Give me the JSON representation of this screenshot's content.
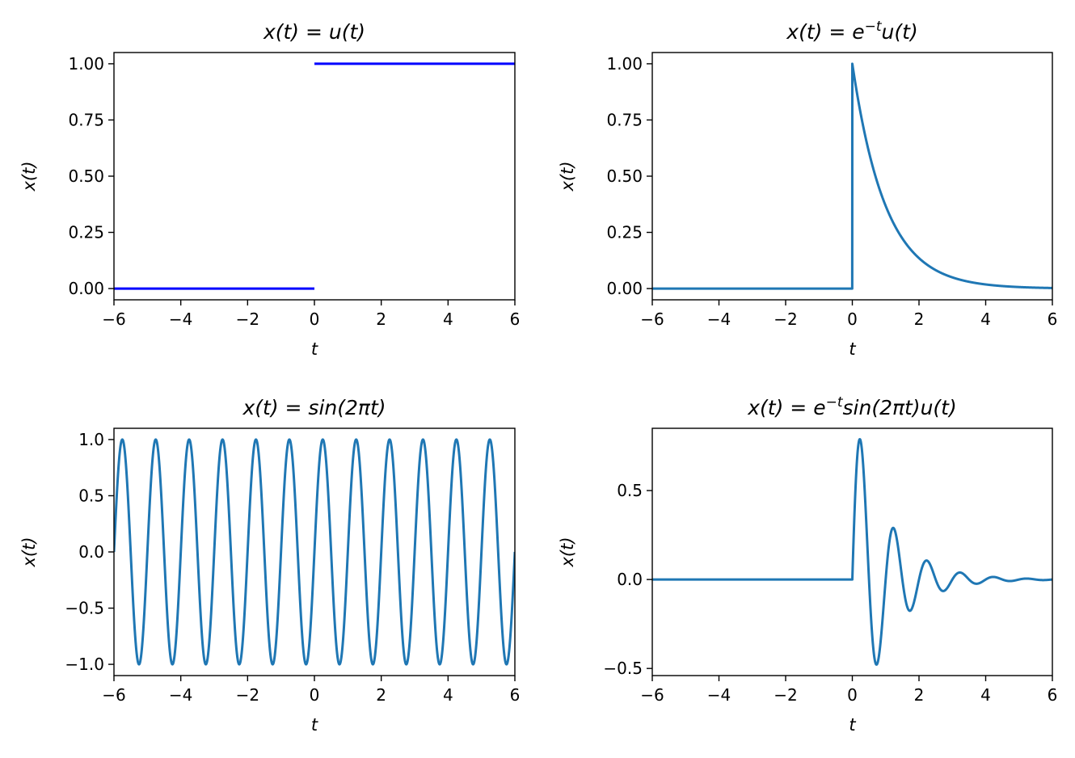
{
  "chart_data": [
    {
      "type": "line",
      "title": "x(t) = u(t)",
      "xlabel": "t",
      "ylabel": "x(t)",
      "xlim": [
        -6,
        6
      ],
      "ylim": [
        -0.05,
        1.05
      ],
      "xticks": [
        "−6",
        "−4",
        "−2",
        "0",
        "2",
        "4",
        "6"
      ],
      "xtick_values": [
        -6,
        -4,
        -2,
        0,
        2,
        4,
        6
      ],
      "yticks": [
        "0.00",
        "0.25",
        "0.50",
        "0.75",
        "1.00"
      ],
      "ytick_values": [
        0,
        0.25,
        0.5,
        0.75,
        1.0
      ],
      "color": "#0000ff",
      "signal": "unit-step",
      "segments": [
        {
          "x": [
            -6,
            0
          ],
          "y": [
            0,
            0
          ]
        },
        {
          "x": [
            0,
            6
          ],
          "y": [
            1,
            1
          ]
        }
      ]
    },
    {
      "type": "line",
      "title": "x(t) = e^{−t}u(t)",
      "xlabel": "t",
      "ylabel": "x(t)",
      "xlim": [
        -6,
        6
      ],
      "ylim": [
        -0.05,
        1.05
      ],
      "xticks": [
        "−6",
        "−4",
        "−2",
        "0",
        "2",
        "4",
        "6"
      ],
      "xtick_values": [
        -6,
        -4,
        -2,
        0,
        2,
        4,
        6
      ],
      "yticks": [
        "0.00",
        "0.25",
        "0.50",
        "0.75",
        "1.00"
      ],
      "ytick_values": [
        0,
        0.25,
        0.5,
        0.75,
        1.0
      ],
      "color": "#1f77b4",
      "signal": "exp-decay-step"
    },
    {
      "type": "line",
      "title": "x(t) = sin(2πt)",
      "xlabel": "t",
      "ylabel": "x(t)",
      "xlim": [
        -6,
        6
      ],
      "ylim": [
        -1.1,
        1.1
      ],
      "xticks": [
        "−6",
        "−4",
        "−2",
        "0",
        "2",
        "4",
        "6"
      ],
      "xtick_values": [
        -6,
        -4,
        -2,
        0,
        2,
        4,
        6
      ],
      "yticks": [
        "−1.0",
        "−0.5",
        "0.0",
        "0.5",
        "1.0"
      ],
      "ytick_values": [
        -1.0,
        -0.5,
        0.0,
        0.5,
        1.0
      ],
      "color": "#1f77b4",
      "signal": "sine"
    },
    {
      "type": "line",
      "title": "x(t) = e^{−t}sin(2πt)u(t)",
      "xlabel": "t",
      "ylabel": "x(t)",
      "xlim": [
        -6,
        6
      ],
      "ylim": [
        -0.54,
        0.85
      ],
      "xticks": [
        "−6",
        "−4",
        "−2",
        "0",
        "2",
        "4",
        "6"
      ],
      "xtick_values": [
        -6,
        -4,
        -2,
        0,
        2,
        4,
        6
      ],
      "yticks": [
        "−0.5",
        "0.0",
        "0.5"
      ],
      "ytick_values": [
        -0.5,
        0.0,
        0.5
      ],
      "color": "#1f77b4",
      "signal": "damped-sine-step"
    }
  ]
}
